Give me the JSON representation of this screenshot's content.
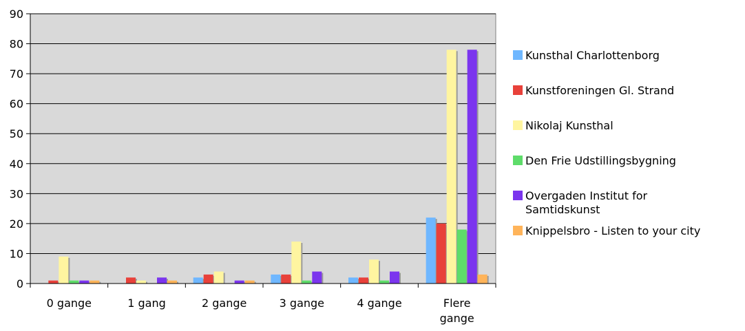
{
  "chart_data": {
    "type": "bar",
    "categories": [
      "0 gange",
      "1 gang",
      "2 gange",
      "3 gange",
      "4 gange",
      "Flere gange"
    ],
    "category_label_lines": [
      [
        "0 gange"
      ],
      [
        "1 gang"
      ],
      [
        "2 gange"
      ],
      [
        "3 gange"
      ],
      [
        "4 gange"
      ],
      [
        "Flere",
        "gange"
      ]
    ],
    "series": [
      {
        "name": "Kunsthal Charlottenborg",
        "name_lines": [
          "Kunsthal Charlottenborg"
        ],
        "color": "#6FB7FF",
        "values": [
          0,
          0,
          2,
          3,
          2,
          22
        ]
      },
      {
        "name": "Kunstforeningen Gl. Strand",
        "name_lines": [
          "Kunstforeningen Gl. Strand"
        ],
        "color": "#E8413A",
        "values": [
          1,
          2,
          3,
          3,
          2,
          20
        ]
      },
      {
        "name": "Nikolaj Kunsthal",
        "name_lines": [
          "Nikolaj Kunsthal"
        ],
        "color": "#FFF5A0",
        "values": [
          9,
          1,
          4,
          14,
          8,
          78
        ]
      },
      {
        "name": "Den Frie Udstillingsbygning",
        "name_lines": [
          "Den Frie Udstillingsbygning"
        ],
        "color": "#5EDC6A",
        "values": [
          1,
          0,
          0,
          1,
          1,
          18
        ]
      },
      {
        "name": "Overgaden Institut for Samtidskunst",
        "name_lines": [
          "Overgaden Institut for",
          "Samtidskunst"
        ],
        "color": "#7B35EE",
        "values": [
          1,
          2,
          1,
          4,
          4,
          78
        ]
      },
      {
        "name": "Knippelsbro - Listen to your city",
        "name_lines": [
          "Knippelsbro - Listen to your city"
        ],
        "color": "#FFB45A",
        "values": [
          1,
          1,
          1,
          0,
          0,
          3
        ]
      }
    ],
    "yticks": [
      "0",
      "10",
      "20",
      "30",
      "40",
      "50",
      "60",
      "70",
      "80",
      "90"
    ],
    "ylim": [
      0,
      90
    ],
    "grid": true,
    "legend_position": "right",
    "plot_background": "#D9D9D9",
    "gridline_color": "#000000"
  }
}
